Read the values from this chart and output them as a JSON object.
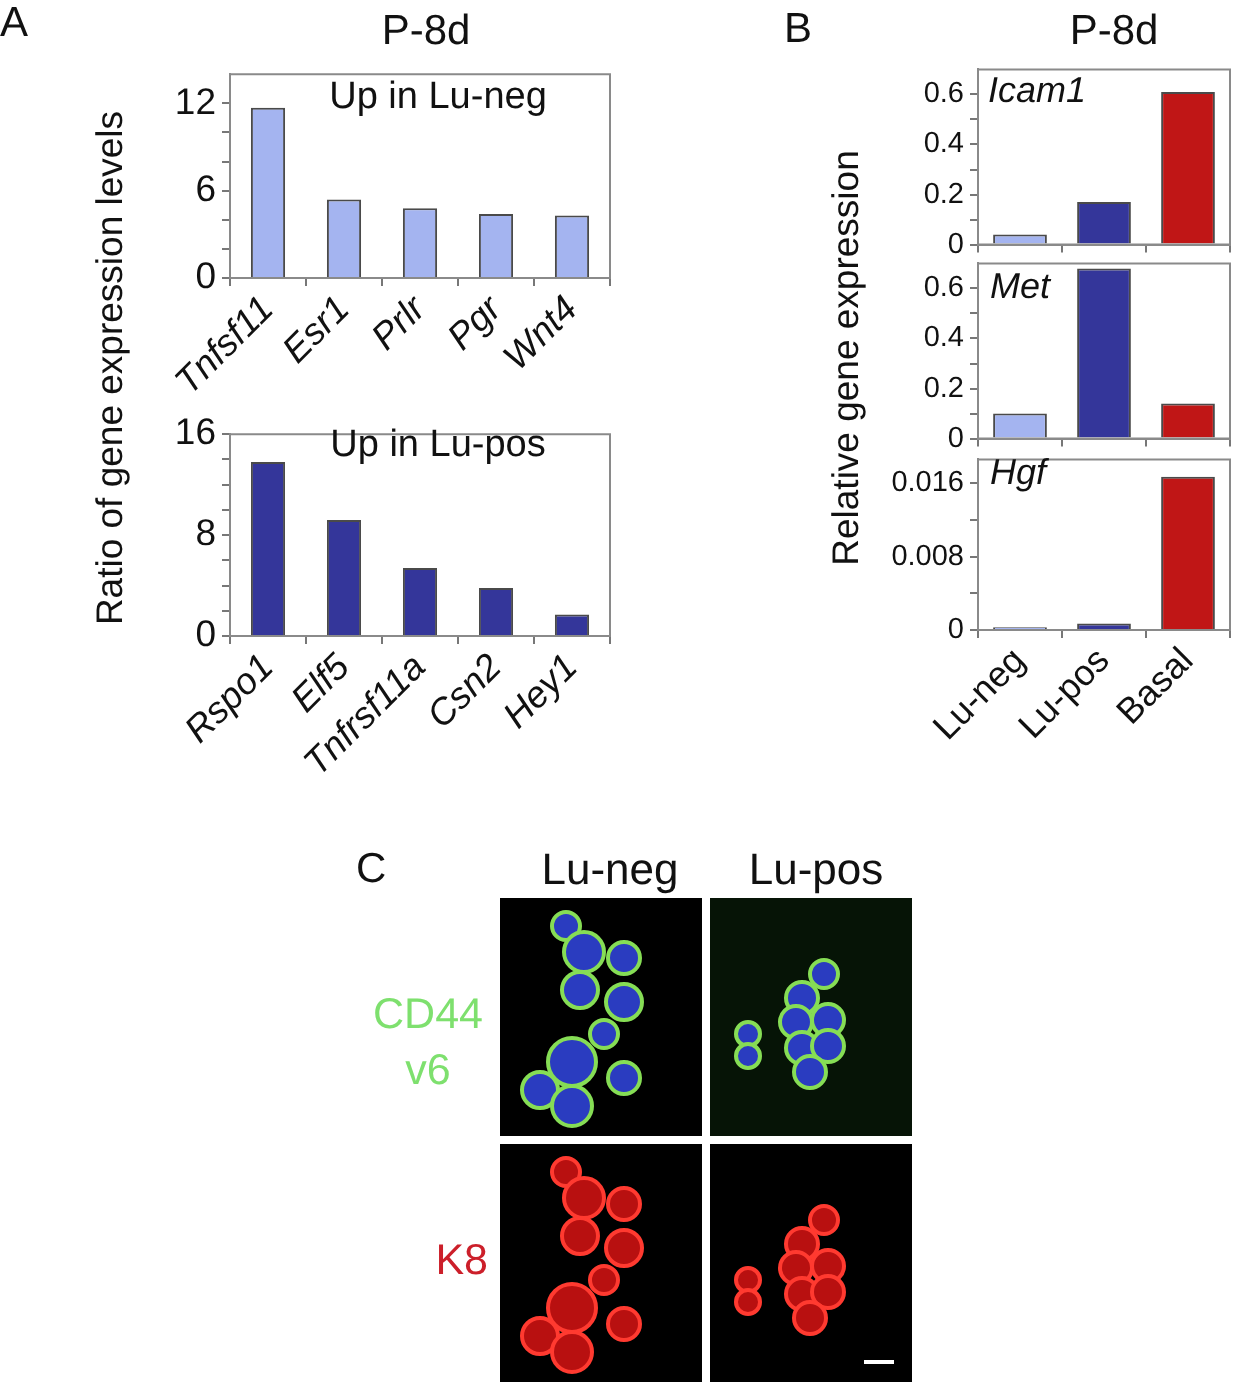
{
  "chart_data": [
    {
      "type": "bar",
      "title": "P-8d",
      "ylabel": "Ratio of gene expression levels",
      "annotations": [
        "A",
        "Up in Lu-neg"
      ],
      "categories": [
        "Tnfsf11",
        "Esr1",
        "Prlr",
        "Pgr",
        "Wnt4"
      ],
      "values": [
        11.7,
        5.4,
        4.8,
        4.4,
        4.3
      ],
      "color": "#a4b4f0",
      "ylim": [
        0,
        14
      ],
      "yticks": [
        0,
        {
          "value": 2,
          "label": null
        },
        {
          "value": 4,
          "label": null
        },
        6,
        {
          "value": 8,
          "label": null
        },
        {
          "value": 10,
          "label": null
        },
        12
      ]
    },
    {
      "type": "bar",
      "annotations": [
        "Up in Lu-pos"
      ],
      "categories": [
        "Rspo1",
        "Elf5",
        "Tnfrsf11a",
        "Csn2",
        "Hey1"
      ],
      "values": [
        13.8,
        9.2,
        5.4,
        3.8,
        1.7
      ],
      "color": "#34369a",
      "ylim": [
        0,
        16
      ],
      "yticks": [
        0,
        {
          "value": 2,
          "label": null
        },
        {
          "value": 4,
          "label": null
        },
        {
          "value": 6,
          "label": null
        },
        8,
        {
          "value": 10,
          "label": null
        },
        {
          "value": 12,
          "label": null
        },
        {
          "value": 14,
          "label": null
        },
        16
      ]
    },
    {
      "type": "bar",
      "title": "P-8d",
      "ylabel": "Relative gene expression",
      "annotations": [
        "B",
        "Icam1"
      ],
      "categories": [
        null,
        null,
        null
      ],
      "values": [
        0.04,
        0.17,
        0.61
      ],
      "colors": [
        "#a4b4f0",
        "#34369a",
        "#c01616"
      ],
      "ylim": [
        0,
        0.7
      ],
      "yticks": [
        0,
        {
          "value": 0.1,
          "label": null
        },
        0.2,
        {
          "value": 0.3,
          "label": null
        },
        0.4,
        {
          "value": 0.5,
          "label": null
        },
        0.6
      ],
      "tick_labels": "y"
    },
    {
      "type": "bar",
      "annotations": [
        "Met"
      ],
      "categories": [
        null,
        null,
        null
      ],
      "values": [
        0.1,
        0.68,
        0.14
      ],
      "colors": [
        "#a4b4f0",
        "#34369a",
        "#c01616"
      ],
      "ylim": [
        0,
        0.7
      ],
      "yticks": [
        0,
        {
          "value": 0.1,
          "label": null
        },
        0.2,
        {
          "value": 0.3,
          "label": null
        },
        0.4,
        {
          "value": 0.5,
          "label": null
        },
        0.6
      ],
      "tick_labels": "y"
    },
    {
      "type": "bar",
      "annotations": [
        "Hgf"
      ],
      "categories": [
        "Lu-neg",
        "Lu-pos",
        "Basal"
      ],
      "values": [
        0.0003,
        0.0007,
        0.0167
      ],
      "colors": [
        "#a4b4f0",
        "#34369a",
        "#c01616"
      ],
      "ylim": [
        0,
        0.0186
      ],
      "yticks": [
        0,
        {
          "value": 0.004,
          "label": null
        },
        0.008,
        {
          "value": 0.012,
          "label": null
        },
        0.016
      ]
    },
    {
      "type": "other",
      "annotations": [
        "C"
      ],
      "categories": [
        "Lu-neg",
        "Lu-pos"
      ],
      "y_categories": [
        "CD44 v6",
        "K8"
      ]
    }
  ]
}
